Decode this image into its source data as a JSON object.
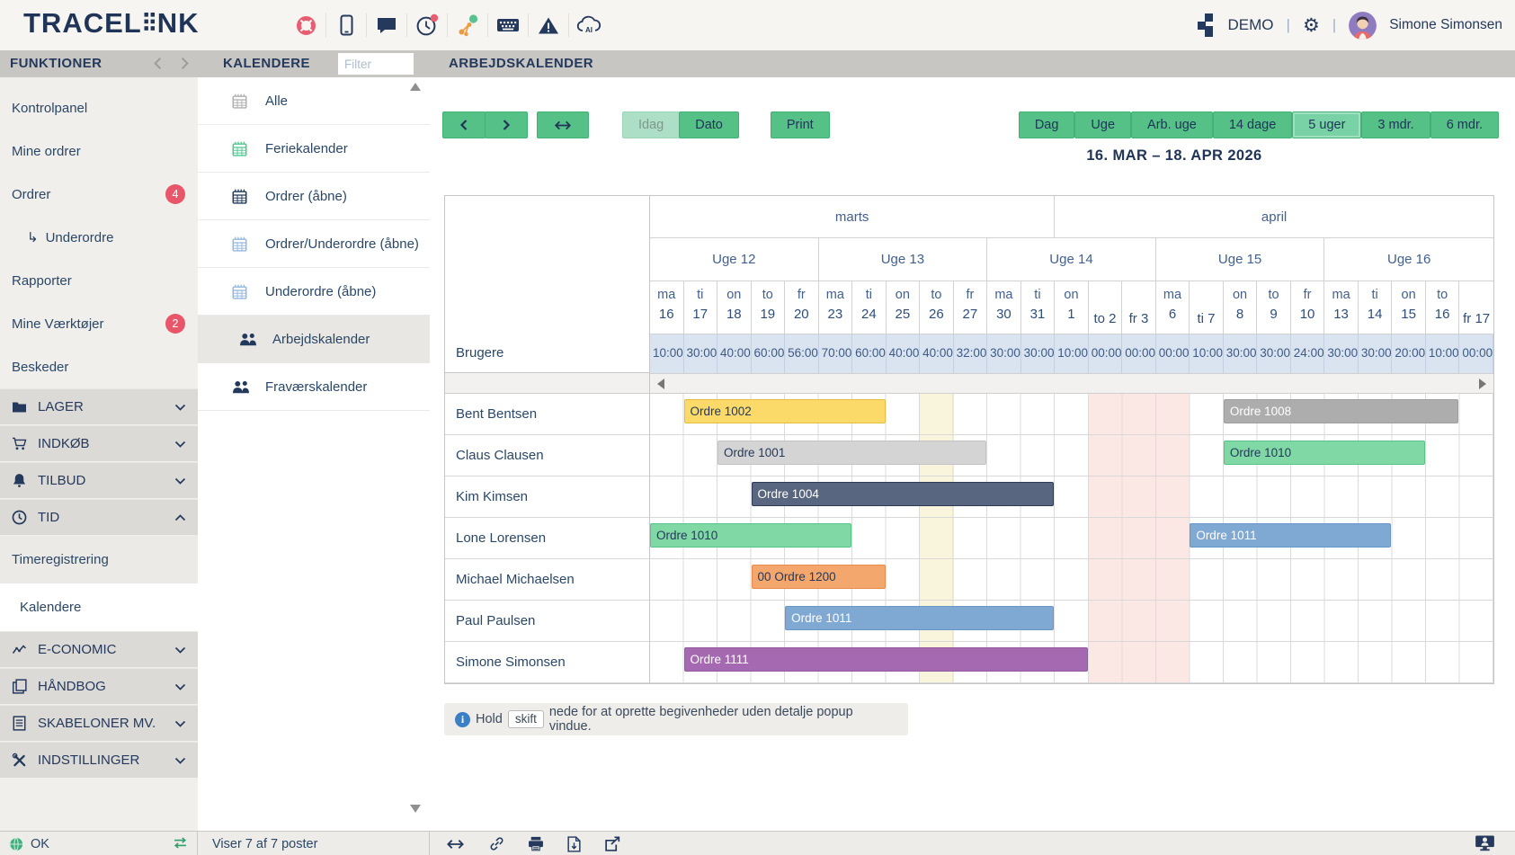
{
  "topbar": {
    "logo_prefix": "TRACEL",
    "logo_suffix": "NK",
    "env": "DEMO",
    "user": "Simone Simonsen"
  },
  "tabbar": {
    "functions": "FUNKTIONER",
    "calendars": "KALENDERE",
    "filter_placeholder": "Filter",
    "title": "ARBEJDSKALENDER"
  },
  "sidebar": {
    "items": [
      {
        "label": "Kontrolpanel"
      },
      {
        "label": "Mine ordrer"
      },
      {
        "label": "Ordrer",
        "badge": "4"
      },
      {
        "label": "Underordre",
        "indent": true
      },
      {
        "label": "Rapporter"
      },
      {
        "label": "Mine Værktøjer",
        "badge": "2"
      },
      {
        "label": "Beskeder"
      }
    ],
    "groups": [
      {
        "label": "LAGER",
        "icon": "folder"
      },
      {
        "label": "INDKØB",
        "icon": "cart"
      },
      {
        "label": "TILBUD",
        "icon": "bell"
      },
      {
        "label": "TID",
        "icon": "clock",
        "expanded": true,
        "children": [
          {
            "label": "Timeregistrering"
          },
          {
            "label": "Kalendere",
            "selected": true
          }
        ]
      },
      {
        "label": "E-CONOMIC",
        "icon": "chart"
      },
      {
        "label": "HÅNDBOG",
        "icon": "book"
      },
      {
        "label": "SKABELONER MV.",
        "icon": "doc"
      },
      {
        "label": "INDSTILLINGER",
        "icon": "tools"
      }
    ]
  },
  "calendar_list": [
    {
      "label": "Alle",
      "icon": "calendar",
      "color": "#AFAFAF"
    },
    {
      "label": "Feriekalender",
      "icon": "calendar",
      "color": "#4FC690"
    },
    {
      "label": "Ordrer (åbne)",
      "icon": "calendar",
      "color": "#23395B"
    },
    {
      "label": "Ordrer/Underordre (åbne)",
      "icon": "calendar",
      "color": "#93B7DE"
    },
    {
      "label": "Underordre (åbne)",
      "icon": "calendar",
      "color": "#93B7DE"
    },
    {
      "label": "Arbejdskalender",
      "icon": "people",
      "color": "#23395B",
      "selected": true
    },
    {
      "label": "Fraværskalender",
      "icon": "people",
      "color": "#23395B"
    }
  ],
  "toolbar": {
    "today": "Idag",
    "date": "Dato",
    "print": "Print",
    "period": "16. MAR – 18. APR 2026",
    "views": [
      {
        "label": "Dag"
      },
      {
        "label": "Uge"
      },
      {
        "label": "Arb. uge"
      },
      {
        "label": "14 dage"
      },
      {
        "label": "5 uger",
        "selected": true
      },
      {
        "label": "3 mdr."
      },
      {
        "label": "6 mdr."
      }
    ]
  },
  "grid": {
    "users_header": "Brugere",
    "months": [
      {
        "label": "marts",
        "span": 12
      },
      {
        "label": "april",
        "span": 13
      }
    ],
    "weeks": [
      {
        "label": "Uge 12",
        "span": 5
      },
      {
        "label": "Uge 13",
        "span": 5
      },
      {
        "label": "Uge 14",
        "span": 5
      },
      {
        "label": "Uge 15",
        "span": 5
      },
      {
        "label": "Uge 16",
        "span": 5
      }
    ],
    "days": [
      {
        "abbr": "ma",
        "num": "16"
      },
      {
        "abbr": "ti",
        "num": "17"
      },
      {
        "abbr": "on",
        "num": "18"
      },
      {
        "abbr": "to",
        "num": "19"
      },
      {
        "abbr": "fr",
        "num": "20"
      },
      {
        "abbr": "ma",
        "num": "23"
      },
      {
        "abbr": "ti",
        "num": "24"
      },
      {
        "abbr": "on",
        "num": "25"
      },
      {
        "abbr": "to",
        "num": "26"
      },
      {
        "abbr": "fr",
        "num": "27"
      },
      {
        "abbr": "ma",
        "num": "30"
      },
      {
        "abbr": "ti",
        "num": "31"
      },
      {
        "abbr": "on",
        "num": "1"
      },
      {
        "abbr": "to",
        "num": "2",
        "inline": true
      },
      {
        "abbr": "fr",
        "num": "3",
        "inline": true
      },
      {
        "abbr": "ma",
        "num": "6"
      },
      {
        "abbr": "ti",
        "num": "7",
        "inline": true
      },
      {
        "abbr": "on",
        "num": "8"
      },
      {
        "abbr": "to",
        "num": "9"
      },
      {
        "abbr": "fr",
        "num": "10"
      },
      {
        "abbr": "ma",
        "num": "13"
      },
      {
        "abbr": "ti",
        "num": "14"
      },
      {
        "abbr": "on",
        "num": "15"
      },
      {
        "abbr": "to",
        "num": "16"
      },
      {
        "abbr": "fr",
        "num": "17",
        "inline": true
      }
    ],
    "hours": [
      "10:00",
      "30:00",
      "40:00",
      "60:00",
      "56:00",
      "70:00",
      "60:00",
      "40:00",
      "40:00",
      "32:00",
      "30:00",
      "30:00",
      "10:00",
      "00:00",
      "00:00",
      "00:00",
      "10:00",
      "30:00",
      "30:00",
      "24:00",
      "30:00",
      "30:00",
      "20:00",
      "10:00",
      "00:00"
    ],
    "today_col": 9,
    "holiday_cols": [
      14,
      15,
      16
    ],
    "rows": [
      {
        "user": "Bent Bentsen",
        "bars": [
          {
            "label": "Ordre 1002",
            "start": 2,
            "end": 7,
            "color": "yellow"
          },
          {
            "label": "Ordre 1008",
            "start": 18,
            "end": 24,
            "color": "gray"
          }
        ]
      },
      {
        "user": "Claus Clausen",
        "bars": [
          {
            "label": "Ordre 1001",
            "start": 3,
            "end": 10,
            "color": "lightgray"
          },
          {
            "label": "Ordre 1010",
            "start": 18,
            "end": 23,
            "color": "green"
          }
        ]
      },
      {
        "user": "Kim Kimsen",
        "bars": [
          {
            "label": "Ordre 1004",
            "start": 4,
            "end": 12,
            "color": "slate"
          }
        ]
      },
      {
        "user": "Lone Lorensen",
        "bars": [
          {
            "label": "Ordre 1010",
            "start": 1,
            "end": 6,
            "color": "green"
          },
          {
            "label": "Ordre 1011",
            "start": 17,
            "end": 22,
            "color": "blue"
          }
        ]
      },
      {
        "user": "Michael Michaelsen",
        "bars": [
          {
            "label": "00 Ordre 1200",
            "start": 4,
            "end": 7,
            "color": "orange"
          }
        ]
      },
      {
        "user": "Paul Paulsen",
        "bars": [
          {
            "label": "Ordre 1011",
            "start": 5,
            "end": 12,
            "color": "blue"
          }
        ]
      },
      {
        "user": "Simone Simonsen",
        "bars": [
          {
            "label": "Ordre 1111",
            "start": 2,
            "end": 13,
            "color": "purple"
          }
        ]
      }
    ],
    "bar_colors": {
      "yellow": {
        "bg": "#FBDA69",
        "border": "#E5BE45",
        "text": "#24395B"
      },
      "lightgray": {
        "bg": "#D4D4D4",
        "border": "#C2C2C2",
        "text": "#24395B"
      },
      "gray": {
        "bg": "#ADADAD",
        "border": "#9E9E9E",
        "text": "#FFFFFF"
      },
      "slate": {
        "bg": "#59667F",
        "border": "#2F3B54",
        "text": "#FFFFFF"
      },
      "green": {
        "bg": "#80D9A5",
        "border": "#57C389",
        "text": "#24395B"
      },
      "blue": {
        "bg": "#7FA8D2",
        "border": "#6896C7",
        "text": "#FFFFFF"
      },
      "orange": {
        "bg": "#F4A76D",
        "border": "#E68C4B",
        "text": "#24395B"
      },
      "purple": {
        "bg": "#A569B1",
        "border": "#935C9F",
        "text": "#FFFFFF"
      }
    }
  },
  "hint": {
    "prefix": "Hold",
    "key": "skift",
    "suffix": "nede for at oprette begivenheder uden detalje popup vindue."
  },
  "statusbar": {
    "status": "OK",
    "records": "Viser 7 af 7 poster"
  },
  "colors": {
    "accent_green": "#55C187",
    "navy": "#24395B",
    "badge": "#E8566A",
    "today_col": "#F8F5DC",
    "holiday_col": "#FBE8E5",
    "hours_bg": "#D9E4F0"
  }
}
